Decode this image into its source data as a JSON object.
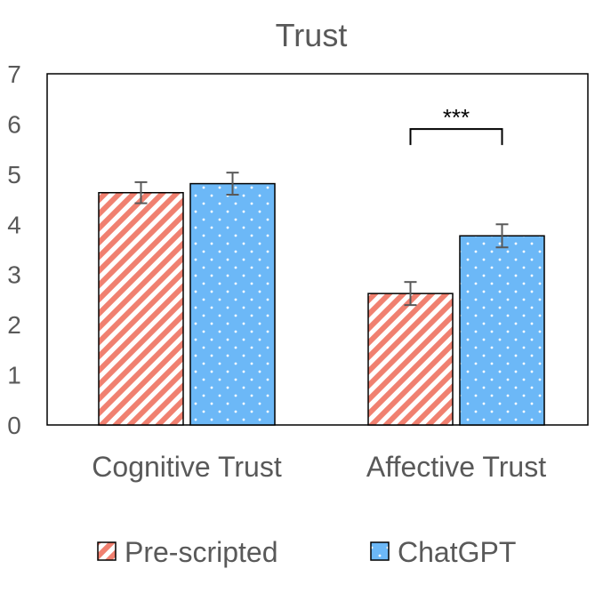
{
  "chart_data": {
    "type": "bar",
    "title": "Trust",
    "xlabel": "",
    "ylabel": "",
    "ylim": [
      0,
      7
    ],
    "yticks": [
      "0",
      "1",
      "2",
      "3",
      "4",
      "5",
      "6",
      "7"
    ],
    "categories": [
      "Cognitive Trust",
      "Affective Trust"
    ],
    "series": [
      {
        "name": "Pre-scripted",
        "pattern": "diagonal-stripes",
        "color": "#F08070",
        "values": [
          4.63,
          2.62
        ],
        "errors": [
          0.21,
          0.23
        ]
      },
      {
        "name": "ChatGPT",
        "pattern": "dots",
        "color": "#6CB8F7",
        "values": [
          4.81,
          3.77
        ],
        "errors": [
          0.22,
          0.23
        ]
      }
    ],
    "annotations": [
      {
        "text": "***",
        "category": "Affective Trust",
        "y": 5.9
      }
    ],
    "legend_position": "bottom",
    "grid": false
  }
}
